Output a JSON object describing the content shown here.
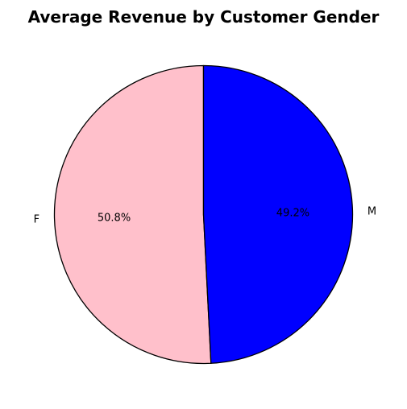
{
  "chart_data": {
    "type": "pie",
    "title": "Average Revenue by Customer Gender",
    "categories": [
      "F",
      "M"
    ],
    "values": [
      50.8,
      49.2
    ],
    "value_labels": [
      "50.8%",
      "49.2%"
    ],
    "colors": [
      "#ffc0cb",
      "#0000ff"
    ],
    "edge_color": "#000000",
    "start_angle_deg": 90,
    "direction": "counterclockwise",
    "legend": "none"
  }
}
